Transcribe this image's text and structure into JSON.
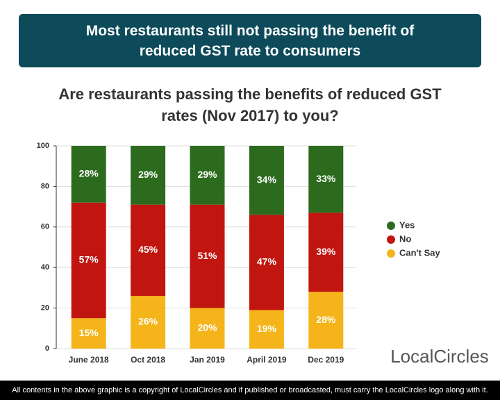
{
  "banner": "Most restaurants still not passing the benefit of reduced GST rate to consumers",
  "logo": "LocalCircles",
  "footer": "All contents in the above graphic is a copyright of LocalCircles and if published or broadcasted, must carry the LocalCircles logo along with it.",
  "chart_data": {
    "type": "stacked_bar",
    "title": "Are restaurants passing the benefits of reduced GST rates (Nov 2017) to you?",
    "categories": [
      "June 2018",
      "Oct 2018",
      "Jan 2019",
      "April 2019",
      "Dec 2019"
    ],
    "series": [
      {
        "name": "Can't Say",
        "color": "#f4b41a",
        "values": [
          15,
          26,
          20,
          19,
          28
        ],
        "value_labels": [
          "15%",
          "26%",
          "20%",
          "19%",
          "28%"
        ]
      },
      {
        "name": "No",
        "color": "#c0160f",
        "values": [
          57,
          45,
          51,
          47,
          39
        ],
        "value_labels": [
          "57%",
          "45%",
          "51%",
          "47%",
          "39%"
        ]
      },
      {
        "name": "Yes",
        "color": "#2c6b1d",
        "values": [
          28,
          29,
          29,
          34,
          33
        ],
        "value_labels": [
          "28%",
          "29%",
          "29%",
          "34%",
          "33%"
        ]
      }
    ],
    "ylim": [
      0,
      100
    ],
    "yticks": [
      0,
      20,
      40,
      60,
      80,
      100
    ],
    "grid": true,
    "legend": "right"
  }
}
